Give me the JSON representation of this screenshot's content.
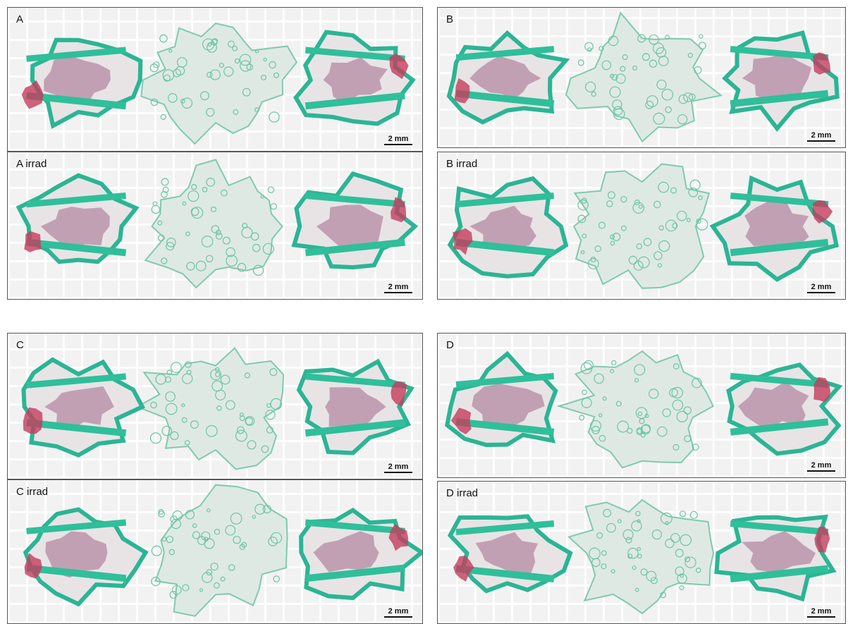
{
  "panels": [
    {
      "label": "A",
      "scale_bar": "2 mm"
    },
    {
      "label": "A irrad",
      "scale_bar": "2 mm"
    },
    {
      "label": "B",
      "scale_bar": "2 mm"
    },
    {
      "label": "B irrad",
      "scale_bar": "2 mm"
    },
    {
      "label": "C",
      "scale_bar": "2 mm"
    },
    {
      "label": "C irrad",
      "scale_bar": "2 mm"
    },
    {
      "label": "D",
      "scale_bar": "2 mm"
    },
    {
      "label": "D irrad",
      "scale_bar": "2 mm"
    }
  ]
}
